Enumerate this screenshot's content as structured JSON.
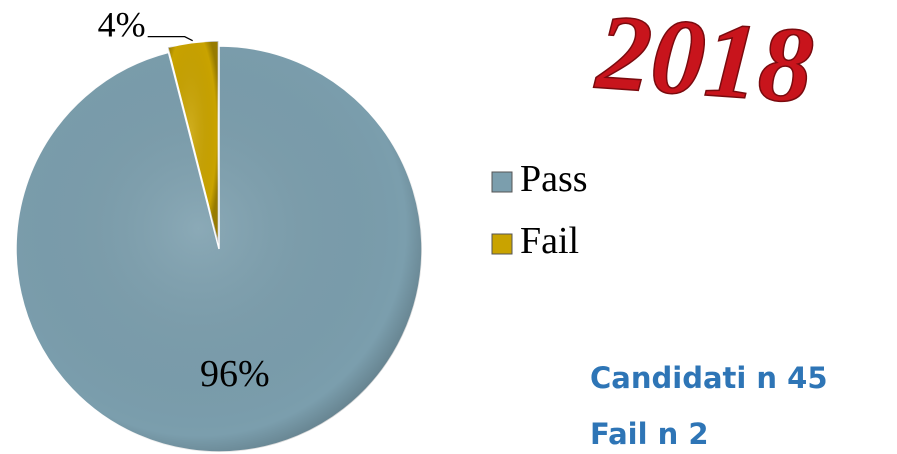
{
  "chart_data": {
    "type": "pie",
    "title": "2018",
    "categories": [
      "Pass",
      "Fail"
    ],
    "values": [
      96,
      4
    ],
    "value_labels": [
      "96%",
      "4%"
    ],
    "colors": [
      "#7b9ead",
      "#c9a300"
    ],
    "annotations": [
      "Candidati n 45",
      "Fail n 2"
    ]
  }
}
